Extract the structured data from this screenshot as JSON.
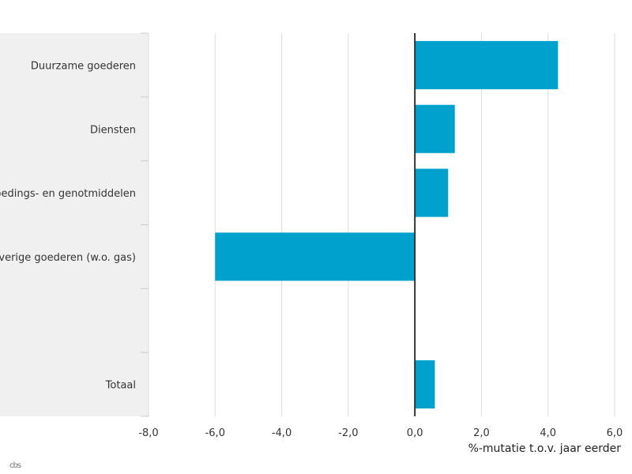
{
  "chart_data": {
    "type": "bar",
    "orientation": "horizontal",
    "categories": [
      "Duurzame goederen",
      "Diensten",
      "Voedings- en genotmiddelen",
      "Overige goederen (w.o. gas)",
      "",
      "Totaal"
    ],
    "values": [
      4.3,
      1.2,
      1.0,
      -6.0,
      null,
      0.6
    ],
    "xlabel": "%-mutatie t.o.v. jaar eerder",
    "xlim": [
      -8,
      6
    ],
    "xticks": [
      -8,
      -6,
      -4,
      -2,
      0,
      2,
      4,
      6
    ],
    "tick_labels": [
      "-8,0",
      "-6,0",
      "-4,0",
      "-2,0",
      "0,0",
      "2,0",
      "4,0",
      "6,0"
    ],
    "grid": "vertical",
    "bar_color": "#00a1cd",
    "label_panel_color": "#f0f0f0",
    "zero_line_color": "#333333"
  },
  "logo_text": "cbs"
}
